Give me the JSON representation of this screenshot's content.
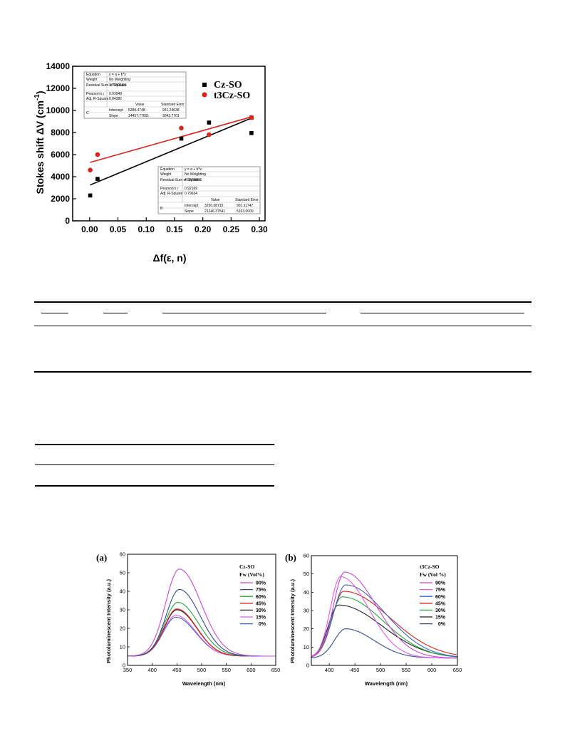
{
  "figure_top": {
    "chart_data": {
      "type": "scatter",
      "xlabel": "Δf(ε, n)",
      "ylabel": "Stokes shift ΔV (cm",
      "ylabel_sup": "-1",
      "ylabel_close": ")",
      "xlim": [
        -0.03,
        0.31
      ],
      "ylim": [
        0,
        14000
      ],
      "xticks": [
        "0.00",
        "0.05",
        "0.10",
        "0.15",
        "0.20",
        "0.25",
        "0.30"
      ],
      "xtick_values": [
        0,
        0.05,
        0.1,
        0.15,
        0.2,
        0.25,
        0.3
      ],
      "yticks": [
        "0",
        "2000",
        "4000",
        "6000",
        "8000",
        "10000",
        "12000",
        "14000"
      ],
      "ytick_values": [
        0,
        2000,
        4000,
        6000,
        8000,
        10000,
        12000,
        14000
      ],
      "legend_position": "top-right",
      "series": [
        {
          "name": "Cz-SO",
          "color": "#000000",
          "marker": "square",
          "x": [
            0.001,
            0.014,
            0.162,
            0.211,
            0.286,
            0.286
          ],
          "y": [
            2300,
            3800,
            7450,
            8900,
            9350,
            7950
          ],
          "fit": {
            "intercept": 3230.08715,
            "slope": 21246.37541,
            "x_range": [
              0.001,
              0.286
            ]
          }
        },
        {
          "name": "t3Cz-SO",
          "color": "#e0211a",
          "marker": "circle",
          "x": [
            0.001,
            0.014,
            0.162,
            0.211,
            0.286
          ],
          "y": [
            4600,
            6000,
            8400,
            7800,
            9350
          ],
          "fit": {
            "intercept": 5280.4748,
            "slope": 14457.77601,
            "x_range": [
              0.001,
              0.286
            ]
          }
        }
      ]
    },
    "fit_table_upper": {
      "rows": [
        [
          "Equation",
          "y = a + b*x"
        ],
        [
          "Weight",
          "No Weighting"
        ],
        [
          "Residual Sum of Squares",
          "1.72301E6"
        ],
        [
          "Pearson's r",
          "0.93949"
        ],
        [
          "Adj. R-Square",
          "0.84382"
        ]
      ],
      "head": [
        "",
        "",
        "Value",
        "Standard Error"
      ],
      "group": "C",
      "params": [
        [
          "Intercept",
          "5280.4748",
          "931.24638"
        ],
        [
          "Slope",
          "14457.77601",
          "3043.7701"
        ]
      ]
    },
    "fit_table_lower": {
      "rows": [
        [
          "Equation",
          "y = a + b*x"
        ],
        [
          "Weight",
          "No Weighting"
        ],
        [
          "Residual Sum of Squares",
          "4.55756E6"
        ],
        [
          "Pearson's r",
          "0.92169"
        ],
        [
          "Adj. R-Square",
          "0.79634"
        ]
      ],
      "head": [
        "",
        "",
        "Value",
        "Standard Error"
      ],
      "group": "B",
      "params": [
        [
          "Intercept",
          "3230.08715",
          "901.11747"
        ],
        [
          "Slope",
          "21246.37541",
          "5163.0009"
        ]
      ]
    }
  },
  "figure_a": {
    "panel_label": "(a)",
    "title": "Cz-SO",
    "legend_title": "Fw (Vol%)",
    "chart_data": {
      "type": "line",
      "xlabel": "Wavelength (nm)",
      "ylabel": "Photoluminescent Intensity (a.u.)",
      "xlim": [
        350,
        650
      ],
      "ylim": [
        0,
        60
      ],
      "xticks": [
        "350",
        "400",
        "450",
        "500",
        "550",
        "600",
        "650"
      ],
      "xtick_values": [
        350,
        400,
        450,
        500,
        550,
        600,
        650
      ],
      "yticks": [
        "0",
        "10",
        "20",
        "30",
        "40",
        "50",
        "60"
      ],
      "ytick_values": [
        0,
        10,
        20,
        30,
        40,
        50,
        60
      ],
      "series": [
        {
          "name": "90%",
          "color": "#cc44dd",
          "peak_x": 455,
          "peak_y": 52,
          "base": 5,
          "sl": 28,
          "sr": 44
        },
        {
          "name": "75%",
          "color": "#2e4c9e",
          "peak_x": 455,
          "peak_y": 41,
          "base": 5,
          "sl": 27,
          "sr": 42
        },
        {
          "name": "60%",
          "color": "#22aa33",
          "peak_x": 452,
          "peak_y": 34,
          "base": 5,
          "sl": 27,
          "sr": 42
        },
        {
          "name": "45%",
          "color": "#e02020",
          "peak_x": 450,
          "peak_y": 30.5,
          "base": 5,
          "sl": 26,
          "sr": 40
        },
        {
          "name": "30%",
          "color": "#222222",
          "peak_x": 450,
          "peak_y": 30,
          "base": 5,
          "sl": 26,
          "sr": 40
        },
        {
          "name": "15%",
          "color": "#ee55ee",
          "peak_x": 448,
          "peak_y": 27,
          "base": 5,
          "sl": 26,
          "sr": 40
        },
        {
          "name": "0%",
          "color": "#3366cc",
          "peak_x": 448,
          "peak_y": 26,
          "base": 5,
          "sl": 26,
          "sr": 40
        }
      ]
    }
  },
  "figure_b": {
    "panel_label": "(b)",
    "title": "t3Cz-SO",
    "legend_title": "Fw (Vol %)",
    "chart_data": {
      "type": "line",
      "xlabel": "Wavelength (nm)",
      "ylabel": "Photoluminescent Intensity (a.u.)",
      "xlim": [
        365,
        650
      ],
      "ylim": [
        0,
        60
      ],
      "xticks": [
        "400",
        "450",
        "500",
        "550",
        "600",
        "650"
      ],
      "xtick_values": [
        400,
        450,
        500,
        550,
        600,
        650
      ],
      "yticks": [
        "0",
        "10",
        "20",
        "30",
        "40",
        "50",
        "60"
      ],
      "ytick_values": [
        0,
        10,
        20,
        30,
        40,
        50,
        60
      ],
      "series": [
        {
          "name": "90%",
          "color": "#cc44dd",
          "peak_x": 430,
          "peak_y": 51,
          "base": 4,
          "sl": 22,
          "sr": 62
        },
        {
          "name": "75%",
          "color": "#ee55ee",
          "peak_x": 422,
          "peak_y": 48.5,
          "base": 4,
          "sl": 20,
          "sr": 55
        },
        {
          "name": "60%",
          "color": "#3366cc",
          "peak_x": 432,
          "peak_y": 44,
          "base": 4,
          "sl": 24,
          "sr": 78
        },
        {
          "name": "45%",
          "color": "#e02020",
          "peak_x": 428,
          "peak_y": 40.5,
          "base": 4,
          "sl": 22,
          "sr": 90
        },
        {
          "name": "30%",
          "color": "#22aa33",
          "peak_x": 425,
          "peak_y": 37.5,
          "base": 4,
          "sl": 22,
          "sr": 80
        },
        {
          "name": "15%",
          "color": "#222222",
          "peak_x": 418,
          "peak_y": 33,
          "base": 4,
          "sl": 20,
          "sr": 85
        },
        {
          "name": "0%",
          "color": "#2e4c9e",
          "peak_x": 432,
          "peak_y": 20,
          "base": 4,
          "sl": 22,
          "sr": 55
        }
      ]
    }
  }
}
